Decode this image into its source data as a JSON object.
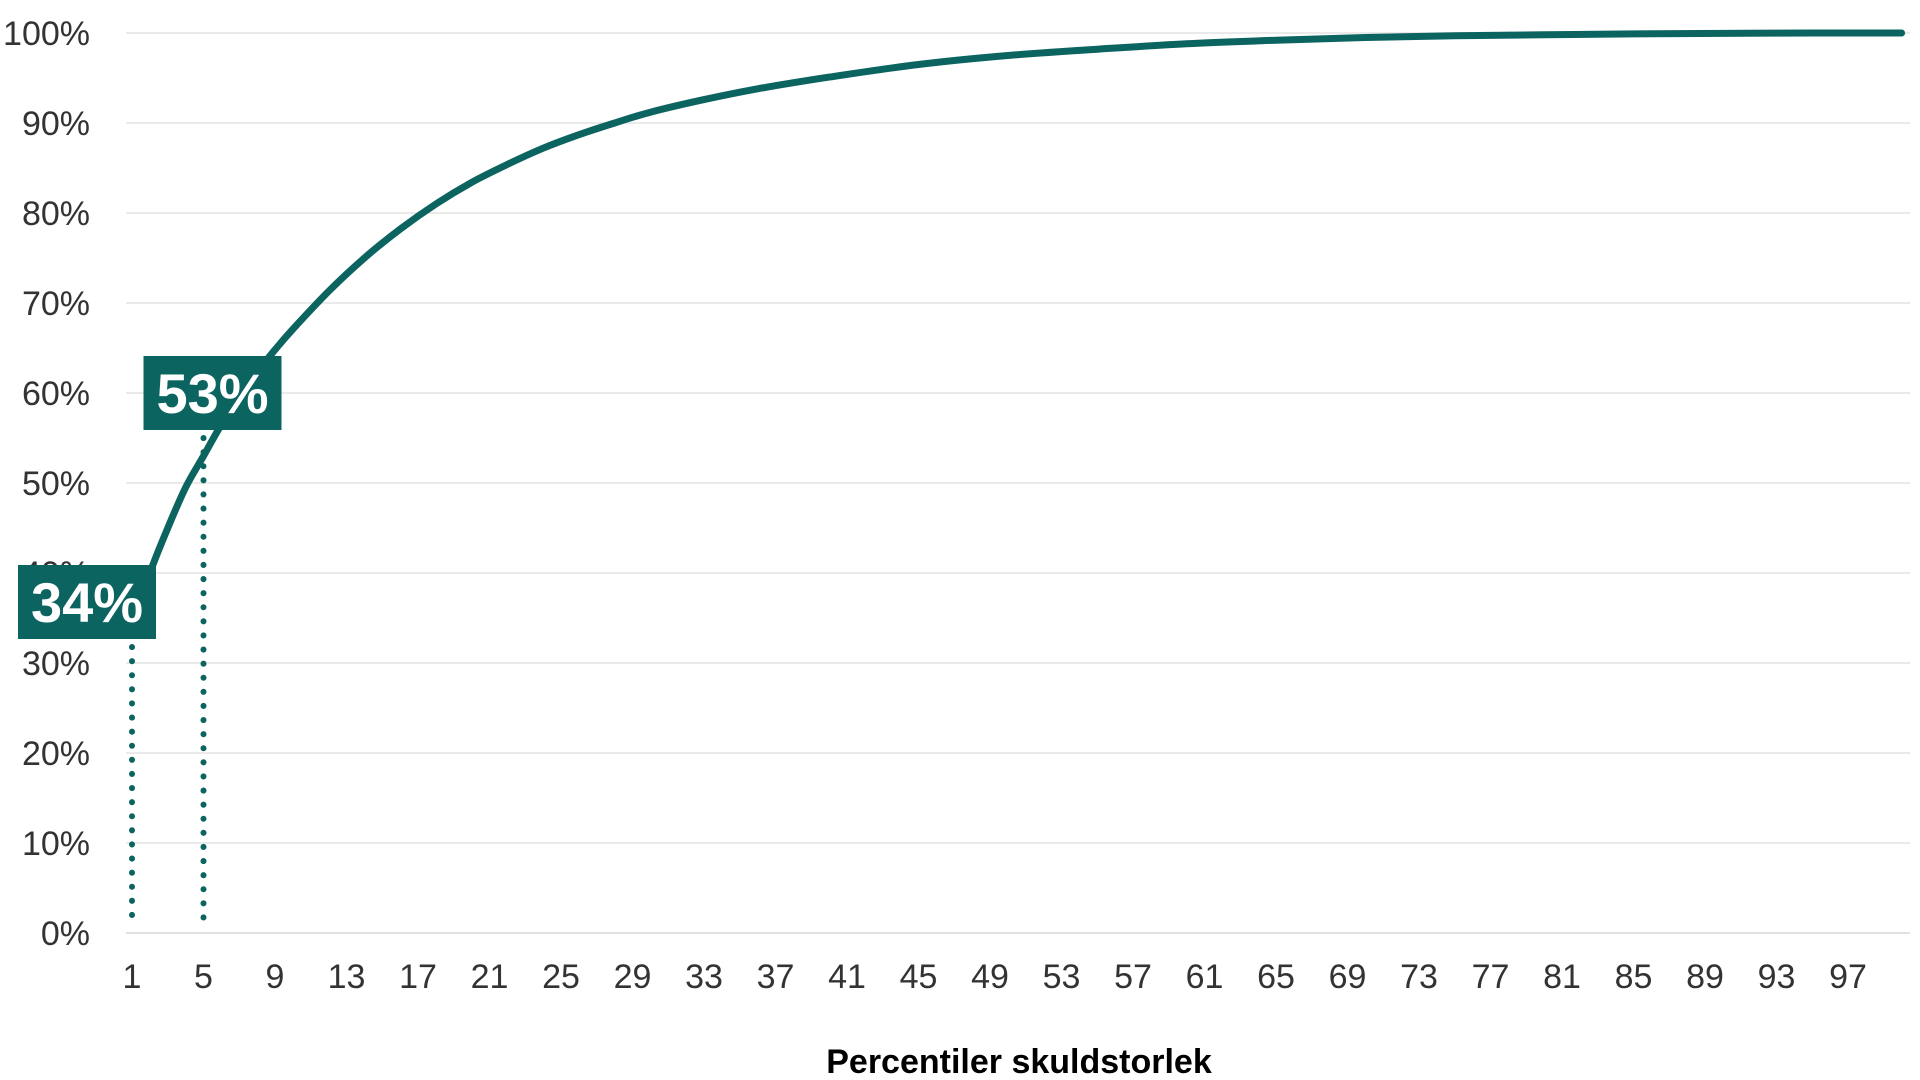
{
  "chart_data": {
    "type": "line",
    "xlabel": "Percentiler skuldstorlek",
    "ylabel": "",
    "title": "",
    "xlim": [
      1,
      100
    ],
    "ylim": [
      0,
      100
    ],
    "grid": "horizontal",
    "x_ticks": [
      1,
      5,
      9,
      13,
      17,
      21,
      25,
      29,
      33,
      37,
      41,
      45,
      49,
      53,
      57,
      61,
      65,
      69,
      73,
      77,
      81,
      85,
      89,
      93,
      97
    ],
    "y_ticks": [
      "0%",
      "10%",
      "20%",
      "30%",
      "40%",
      "50%",
      "60%",
      "70%",
      "80%",
      "90%",
      "100%"
    ],
    "series": [
      {
        "x": [
          1,
          2,
          3,
          4,
          5,
          6,
          7,
          8,
          9,
          10,
          12,
          14,
          16,
          18,
          20,
          22,
          24,
          26,
          28,
          30,
          33,
          36,
          40,
          45,
          50,
          55,
          60,
          65,
          70,
          75,
          80,
          85,
          90,
          95,
          100
        ],
        "values": [
          34,
          40,
          45,
          49.5,
          53,
          56.5,
          59.5,
          62.3,
          64.8,
          67.1,
          71.3,
          75,
          78.2,
          81,
          83.4,
          85.4,
          87.2,
          88.7,
          90,
          91.2,
          92.6,
          93.8,
          95.1,
          96.5,
          97.5,
          98.2,
          98.8,
          99.2,
          99.5,
          99.7,
          99.8,
          99.9,
          99.95,
          100,
          100
        ]
      }
    ],
    "annotations": [
      {
        "x": 1,
        "y": 34,
        "label": "34%"
      },
      {
        "x": 5,
        "y": 53,
        "label": "53%"
      }
    ],
    "colors": {
      "line": "#0c6461",
      "callout": "#0c6461",
      "grid": "#e3e3e3"
    }
  }
}
